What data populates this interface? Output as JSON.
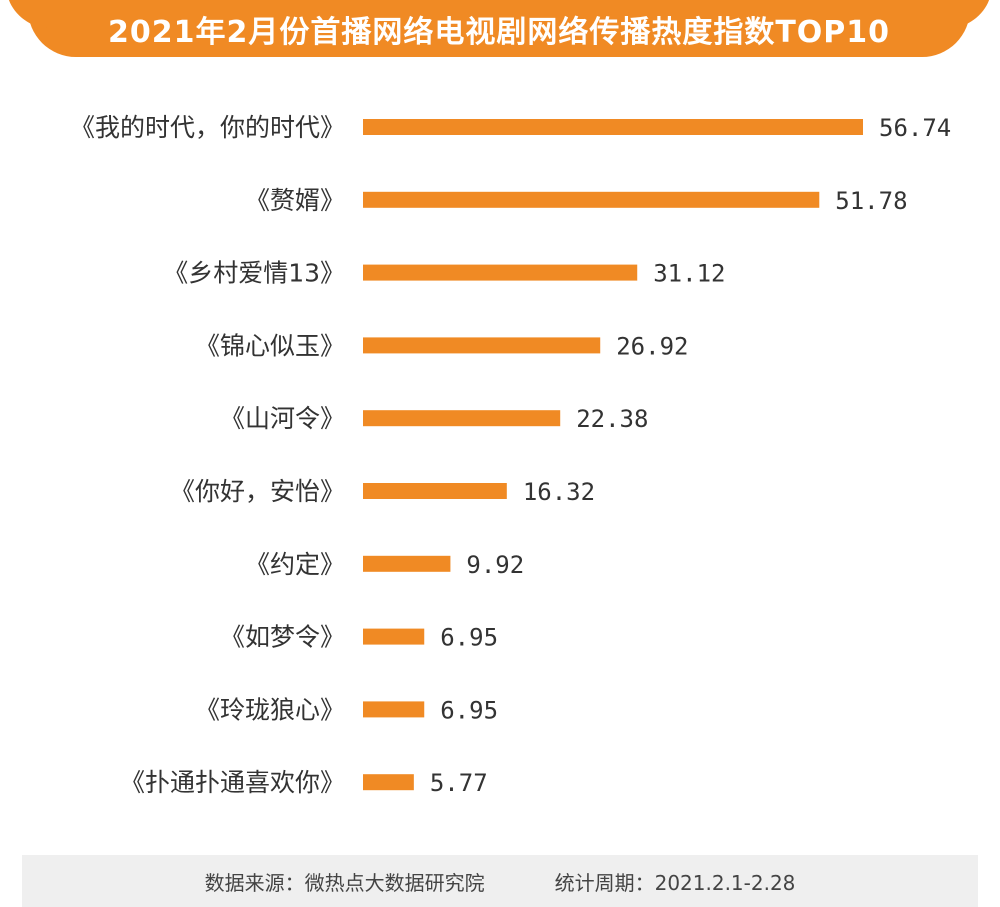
{
  "title": "2021年2月份首播网络电视剧网络传播热度指数TOP10",
  "colors": {
    "accent": "#f08a24",
    "bar": "#f08a24",
    "text": "#333333",
    "footer_bg": "#efefef"
  },
  "chart_data": {
    "type": "bar",
    "orientation": "horizontal",
    "categories": [
      "《我的时代，你的时代》",
      "《赘婿》",
      "《乡村爱情13》",
      "《锦心似玉》",
      "《山河令》",
      "《你好，安怡》",
      "《约定》",
      "《如梦令》",
      "《玲珑狼心》",
      "《扑通扑通喜欢你》"
    ],
    "value_labels": [
      "56.74",
      "51.78",
      "31.12",
      "26.92",
      "22.38",
      "16.32",
      "9.92",
      "6.95",
      "6.95",
      "5.77"
    ],
    "values": [
      56.74,
      51.78,
      31.12,
      26.92,
      22.38,
      16.32,
      9.92,
      6.95,
      6.95,
      5.77
    ],
    "xlim": [
      0,
      56.74
    ],
    "grid": false,
    "legend": "none"
  },
  "footer": {
    "source": "数据来源：微热点大数据研究院",
    "period": "统计周期：2021.2.1-2.28"
  }
}
